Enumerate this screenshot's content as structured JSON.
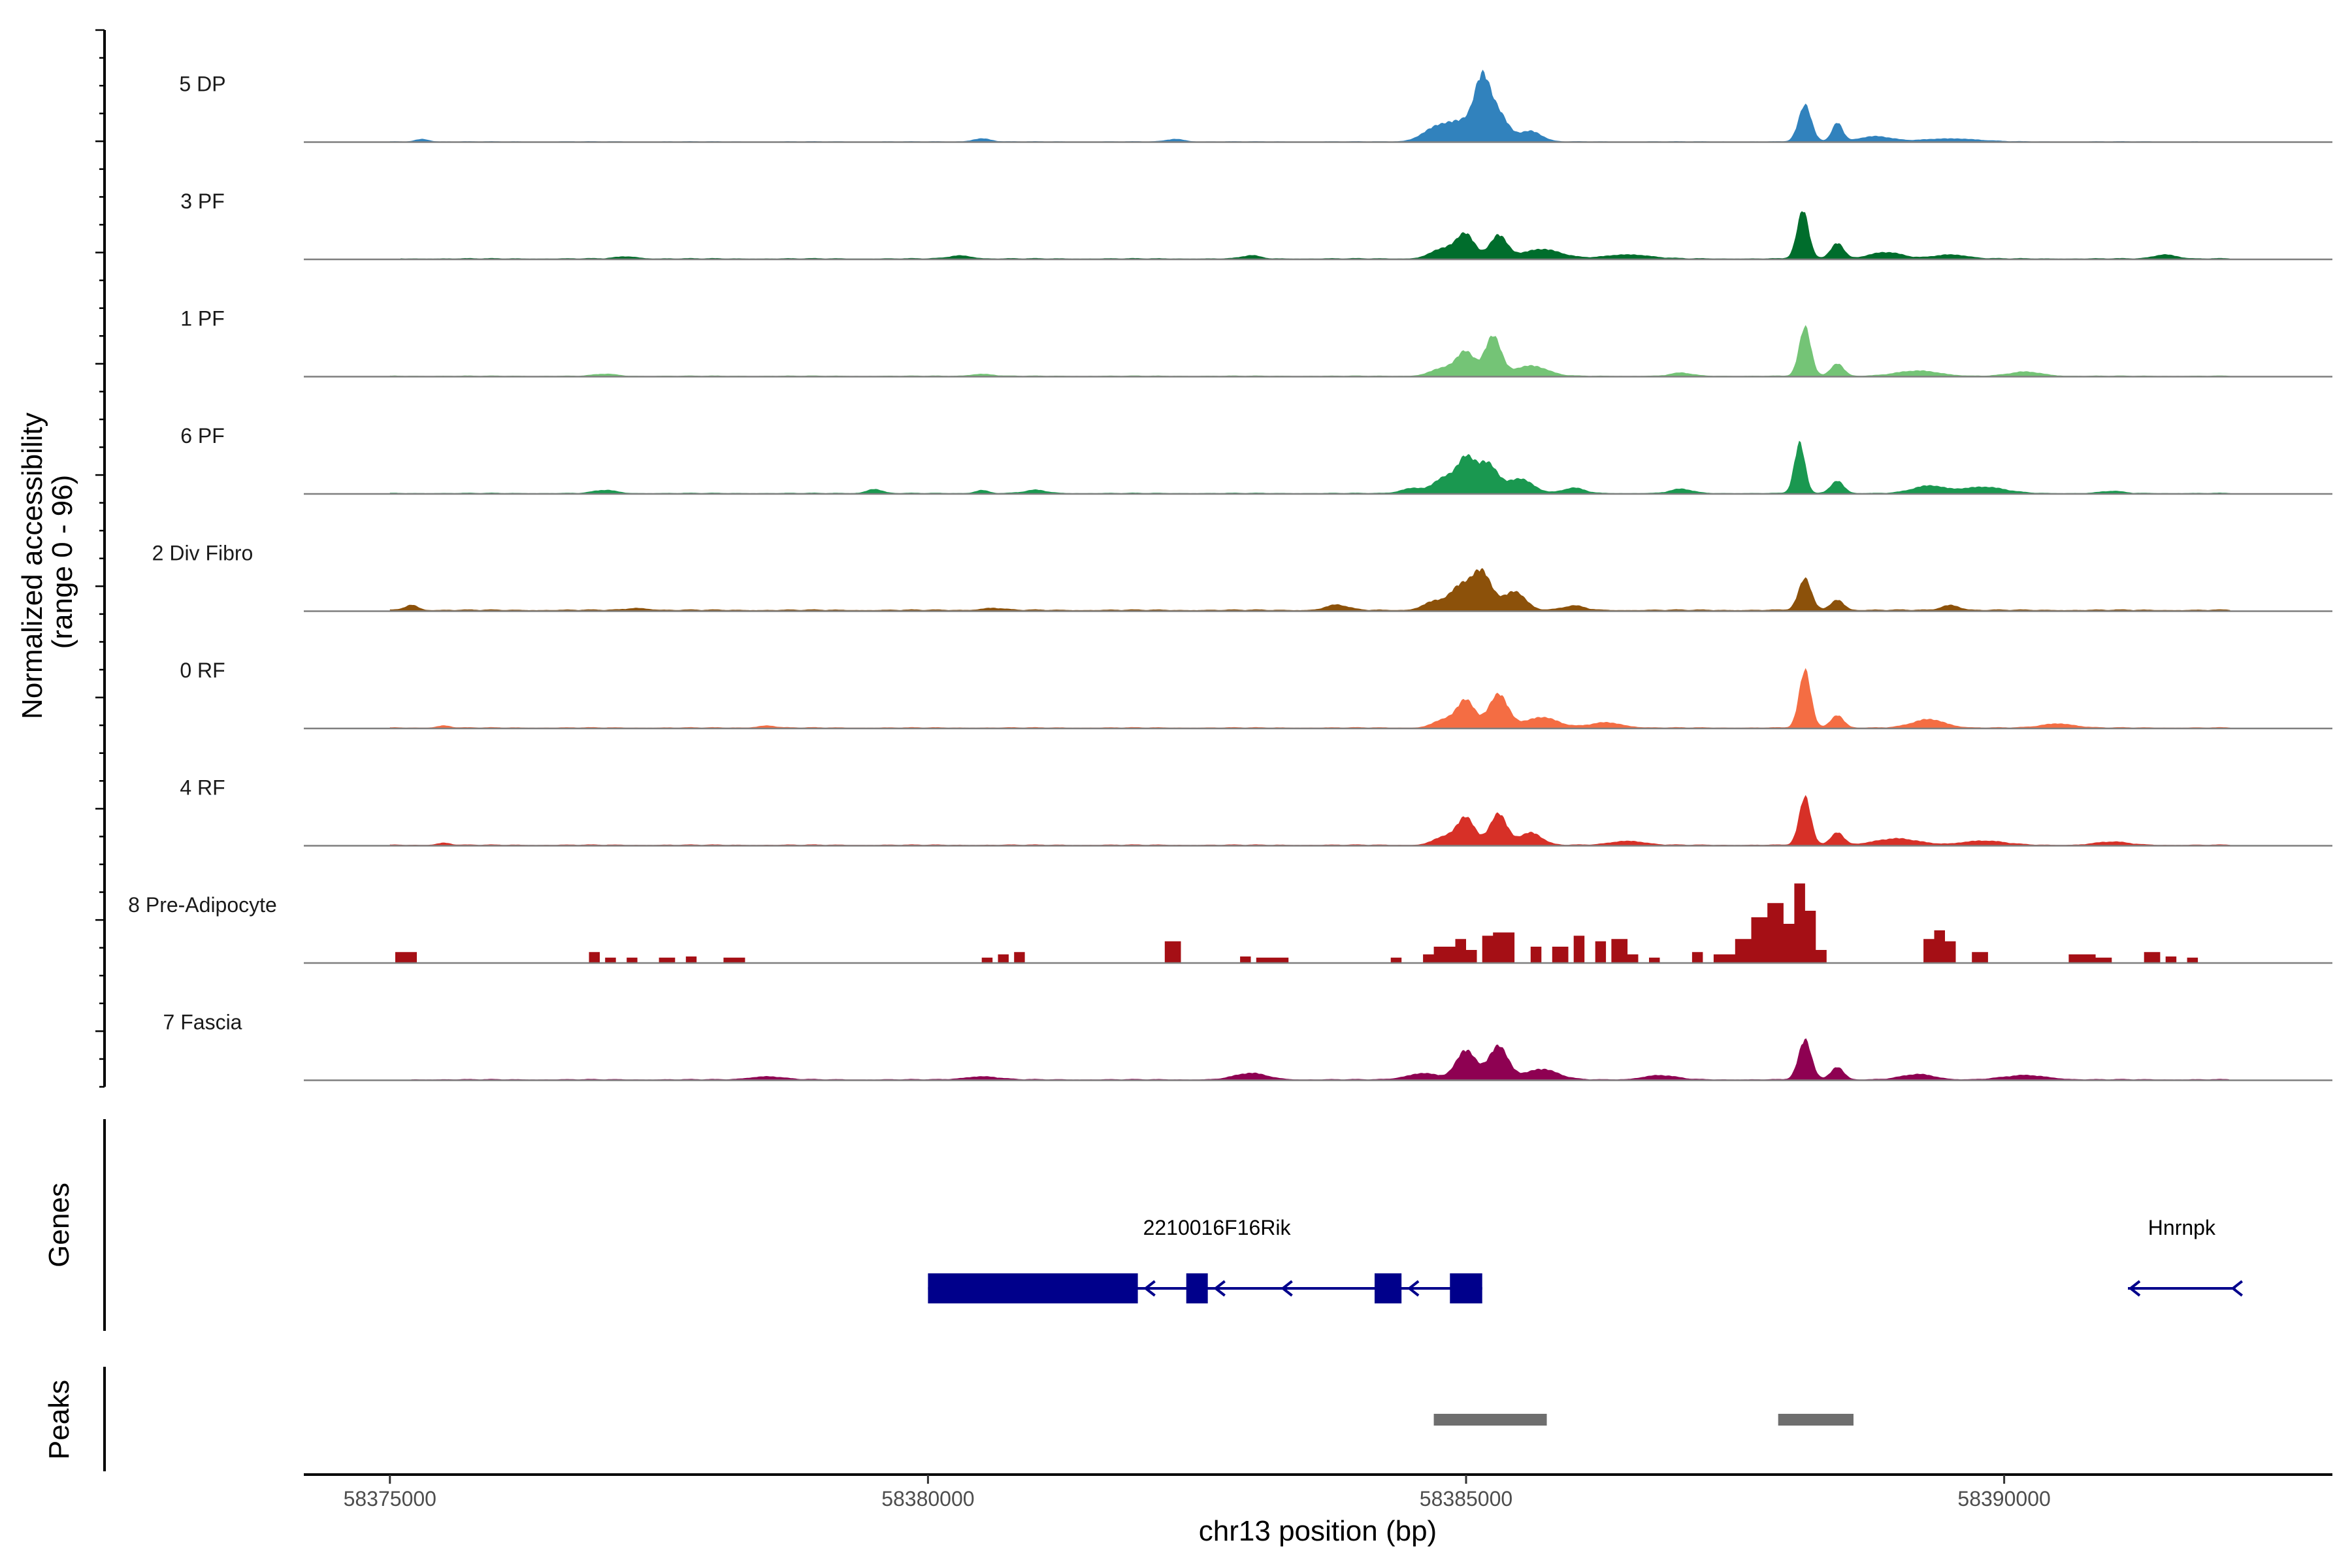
{
  "chart_data": {
    "type": "area",
    "title": "",
    "ylabel_line1": "Normalized accessibility",
    "ylabel_line2": "(range 0 - 96)",
    "xlabel": "chr13 position (bp)",
    "xlim": [
      58374200,
      58393050
    ],
    "ylim": [
      0,
      96
    ],
    "x_ticks": [
      58375000,
      58380000,
      58385000,
      58390000
    ],
    "x_tick_labels": [
      "58375000",
      "58380000",
      "58385000",
      "58390000"
    ],
    "region": [
      58375000,
      58392100
    ],
    "series": [
      {
        "name": "5 DP",
        "color": "#3182bd",
        "background": 0.9,
        "bg_start": 58375000,
        "bg_end": 58391800,
        "peaks": [
          [
            58375300,
            2.5,
            60
          ],
          [
            58380500,
            3,
            80
          ],
          [
            58382300,
            2.5,
            80
          ],
          [
            58384700,
            8,
            120
          ],
          [
            58385000,
            20,
            200
          ],
          [
            58385150,
            45,
            70
          ],
          [
            58385300,
            22,
            90
          ],
          [
            58385600,
            10,
            100
          ],
          [
            58388150,
            35,
            60
          ],
          [
            58388450,
            18,
            50
          ],
          [
            58388800,
            5,
            150
          ],
          [
            58389500,
            3,
            250
          ]
        ]
      },
      {
        "name": "3 PF",
        "color": "#006d2c",
        "background": 1.3,
        "bg_start": 58375100,
        "bg_end": 58392100,
        "peaks": [
          [
            58377200,
            2,
            100
          ],
          [
            58380300,
            3,
            100
          ],
          [
            58383000,
            3,
            80
          ],
          [
            58384800,
            10,
            120
          ],
          [
            58385000,
            22,
            80
          ],
          [
            58385300,
            22,
            80
          ],
          [
            58385700,
            9,
            180
          ],
          [
            58386500,
            4,
            200
          ],
          [
            58388130,
            46,
            55
          ],
          [
            58388450,
            15,
            60
          ],
          [
            58388900,
            6,
            150
          ],
          [
            58389500,
            4,
            150
          ],
          [
            58391500,
            4,
            100
          ]
        ]
      },
      {
        "name": "1 PF",
        "color": "#74c476",
        "background": 1.1,
        "bg_start": 58375000,
        "bg_end": 58392100,
        "peaks": [
          [
            58377000,
            2,
            100
          ],
          [
            58380500,
            2,
            100
          ],
          [
            58384800,
            8,
            120
          ],
          [
            58385000,
            22,
            80
          ],
          [
            58385250,
            38,
            75
          ],
          [
            58385600,
            10,
            150
          ],
          [
            58387000,
            3,
            100
          ],
          [
            58388150,
            47,
            55
          ],
          [
            58388450,
            12,
            60
          ],
          [
            58389200,
            5,
            200
          ],
          [
            58390200,
            4,
            150
          ]
        ]
      },
      {
        "name": "6 PF",
        "color": "#1a9850",
        "background": 1.2,
        "bg_start": 58375000,
        "bg_end": 58392100,
        "peaks": [
          [
            58377000,
            3,
            100
          ],
          [
            58379500,
            4,
            70
          ],
          [
            58380500,
            3,
            60
          ],
          [
            58381000,
            3,
            100
          ],
          [
            58384500,
            5,
            100
          ],
          [
            58384800,
            15,
            100
          ],
          [
            58385000,
            32,
            80
          ],
          [
            58385200,
            28,
            90
          ],
          [
            58385500,
            14,
            120
          ],
          [
            58386000,
            5,
            100
          ],
          [
            58387000,
            4,
            100
          ],
          [
            58388100,
            48,
            50
          ],
          [
            58388450,
            12,
            60
          ],
          [
            58389300,
            7,
            150
          ],
          [
            58389800,
            6,
            200
          ],
          [
            58391000,
            2,
            100
          ]
        ]
      },
      {
        "name": "2 Div Fibro",
        "color": "#8c510a",
        "background": 1.8,
        "bg_start": 58375000,
        "bg_end": 58392100,
        "peaks": [
          [
            58375200,
            5,
            60
          ],
          [
            58377300,
            2,
            100
          ],
          [
            58380600,
            2,
            100
          ],
          [
            58383800,
            5,
            100
          ],
          [
            58384700,
            8,
            100
          ],
          [
            58384950,
            22,
            100
          ],
          [
            58385150,
            35,
            90
          ],
          [
            58385450,
            18,
            100
          ],
          [
            58386000,
            4,
            100
          ],
          [
            58388150,
            30,
            60
          ],
          [
            58388450,
            10,
            60
          ],
          [
            58389500,
            5,
            80
          ]
        ]
      },
      {
        "name": "0 RF",
        "color": "#f46d43",
        "background": 1.3,
        "bg_start": 58375000,
        "bg_end": 58392100,
        "peaks": [
          [
            58375500,
            2,
            60
          ],
          [
            58378500,
            2,
            80
          ],
          [
            58384800,
            8,
            100
          ],
          [
            58385000,
            26,
            80
          ],
          [
            58385300,
            32,
            90
          ],
          [
            58385700,
            10,
            150
          ],
          [
            58386300,
            5,
            150
          ],
          [
            58388150,
            55,
            55
          ],
          [
            58388450,
            12,
            60
          ],
          [
            58389300,
            8,
            150
          ],
          [
            58390500,
            4,
            150
          ]
        ]
      },
      {
        "name": "4 RF",
        "color": "#d73027",
        "background": 1.3,
        "bg_start": 58375000,
        "bg_end": 58392100,
        "peaks": [
          [
            58375500,
            2,
            60
          ],
          [
            58384800,
            8,
            100
          ],
          [
            58385000,
            26,
            80
          ],
          [
            58385300,
            30,
            80
          ],
          [
            58385600,
            12,
            100
          ],
          [
            58386500,
            4,
            150
          ],
          [
            58388150,
            46,
            55
          ],
          [
            58388450,
            12,
            60
          ],
          [
            58389000,
            6,
            200
          ],
          [
            58389800,
            4,
            200
          ],
          [
            58391000,
            3,
            150
          ]
        ]
      },
      {
        "name": "8 Pre-Adipocyte",
        "color": "#a50f15",
        "background": 0,
        "bg_start": 58375000,
        "bg_end": 58392100,
        "blocks": [
          [
            58375050,
            58375250,
            10
          ],
          [
            58376850,
            58376950,
            10
          ],
          [
            58377000,
            58377100,
            5
          ],
          [
            58377200,
            58377300,
            5
          ],
          [
            58377500,
            58377650,
            5
          ],
          [
            58377750,
            58377850,
            6
          ],
          [
            58378100,
            58378300,
            5
          ],
          [
            58380500,
            58380600,
            5
          ],
          [
            58380650,
            58380750,
            8
          ],
          [
            58380800,
            58380900,
            10
          ],
          [
            58382200,
            58382350,
            20
          ],
          [
            58382900,
            58383000,
            6
          ],
          [
            58383050,
            58383350,
            5
          ],
          [
            58384300,
            58384400,
            5
          ],
          [
            58384600,
            58384700,
            8
          ],
          [
            58384700,
            58384900,
            15
          ],
          [
            58384900,
            58385000,
            22
          ],
          [
            58385000,
            58385100,
            12
          ],
          [
            58385150,
            58385250,
            25
          ],
          [
            58385250,
            58385450,
            28
          ],
          [
            58385600,
            58385700,
            15
          ],
          [
            58385800,
            58385950,
            15
          ],
          [
            58386000,
            58386100,
            25
          ],
          [
            58386200,
            58386300,
            20
          ],
          [
            58386350,
            58386500,
            22
          ],
          [
            58386500,
            58386600,
            8
          ],
          [
            58386700,
            58386800,
            5
          ],
          [
            58387100,
            58387200,
            10
          ],
          [
            58387300,
            58387500,
            8
          ],
          [
            58387500,
            58387650,
            22
          ],
          [
            58387650,
            58387800,
            42
          ],
          [
            58387800,
            58387950,
            55
          ],
          [
            58387950,
            58388050,
            36
          ],
          [
            58388050,
            58388150,
            73
          ],
          [
            58388150,
            58388250,
            48
          ],
          [
            58388250,
            58388350,
            12
          ],
          [
            58389250,
            58389350,
            22
          ],
          [
            58389350,
            58389450,
            30
          ],
          [
            58389450,
            58389550,
            20
          ],
          [
            58389700,
            58389850,
            10
          ],
          [
            58390600,
            58390850,
            8
          ],
          [
            58390850,
            58391000,
            5
          ],
          [
            58391300,
            58391450,
            10
          ],
          [
            58391500,
            58391600,
            6
          ],
          [
            58391700,
            58391800,
            5
          ]
        ]
      },
      {
        "name": "7 Fascia",
        "color": "#8e0152",
        "background": 1.3,
        "bg_start": 58375200,
        "bg_end": 58392100,
        "peaks": [
          [
            58378500,
            3,
            150
          ],
          [
            58380500,
            3,
            150
          ],
          [
            58383000,
            6,
            150
          ],
          [
            58384600,
            6,
            150
          ],
          [
            58385000,
            28,
            90
          ],
          [
            58385300,
            32,
            90
          ],
          [
            58385700,
            10,
            150
          ],
          [
            58386800,
            4,
            150
          ],
          [
            58388150,
            38,
            60
          ],
          [
            58388450,
            12,
            60
          ],
          [
            58389200,
            5,
            150
          ],
          [
            58390200,
            4,
            200
          ]
        ]
      }
    ],
    "genes": [
      {
        "name": "2210016F16Rik",
        "strand": "-",
        "start": 58380000,
        "end": 58385150,
        "exons": [
          [
            58380000,
            58381950
          ],
          [
            58382400,
            58382600
          ],
          [
            58384150,
            58384400
          ],
          [
            58384850,
            58385150
          ]
        ]
      },
      {
        "name": "Hnrnpk",
        "strand": "-",
        "start": 58391150,
        "end": 58392150,
        "exons": []
      }
    ],
    "peaks_track": [
      [
        58384700,
        58385750
      ],
      [
        58387900,
        58388600
      ]
    ],
    "panel_labels": {
      "genes": "Genes",
      "peaks": "Peaks"
    },
    "colors": {
      "gene": "#00008b",
      "peak": "#6e6e6e",
      "baseline": "#7f7f7f"
    }
  }
}
